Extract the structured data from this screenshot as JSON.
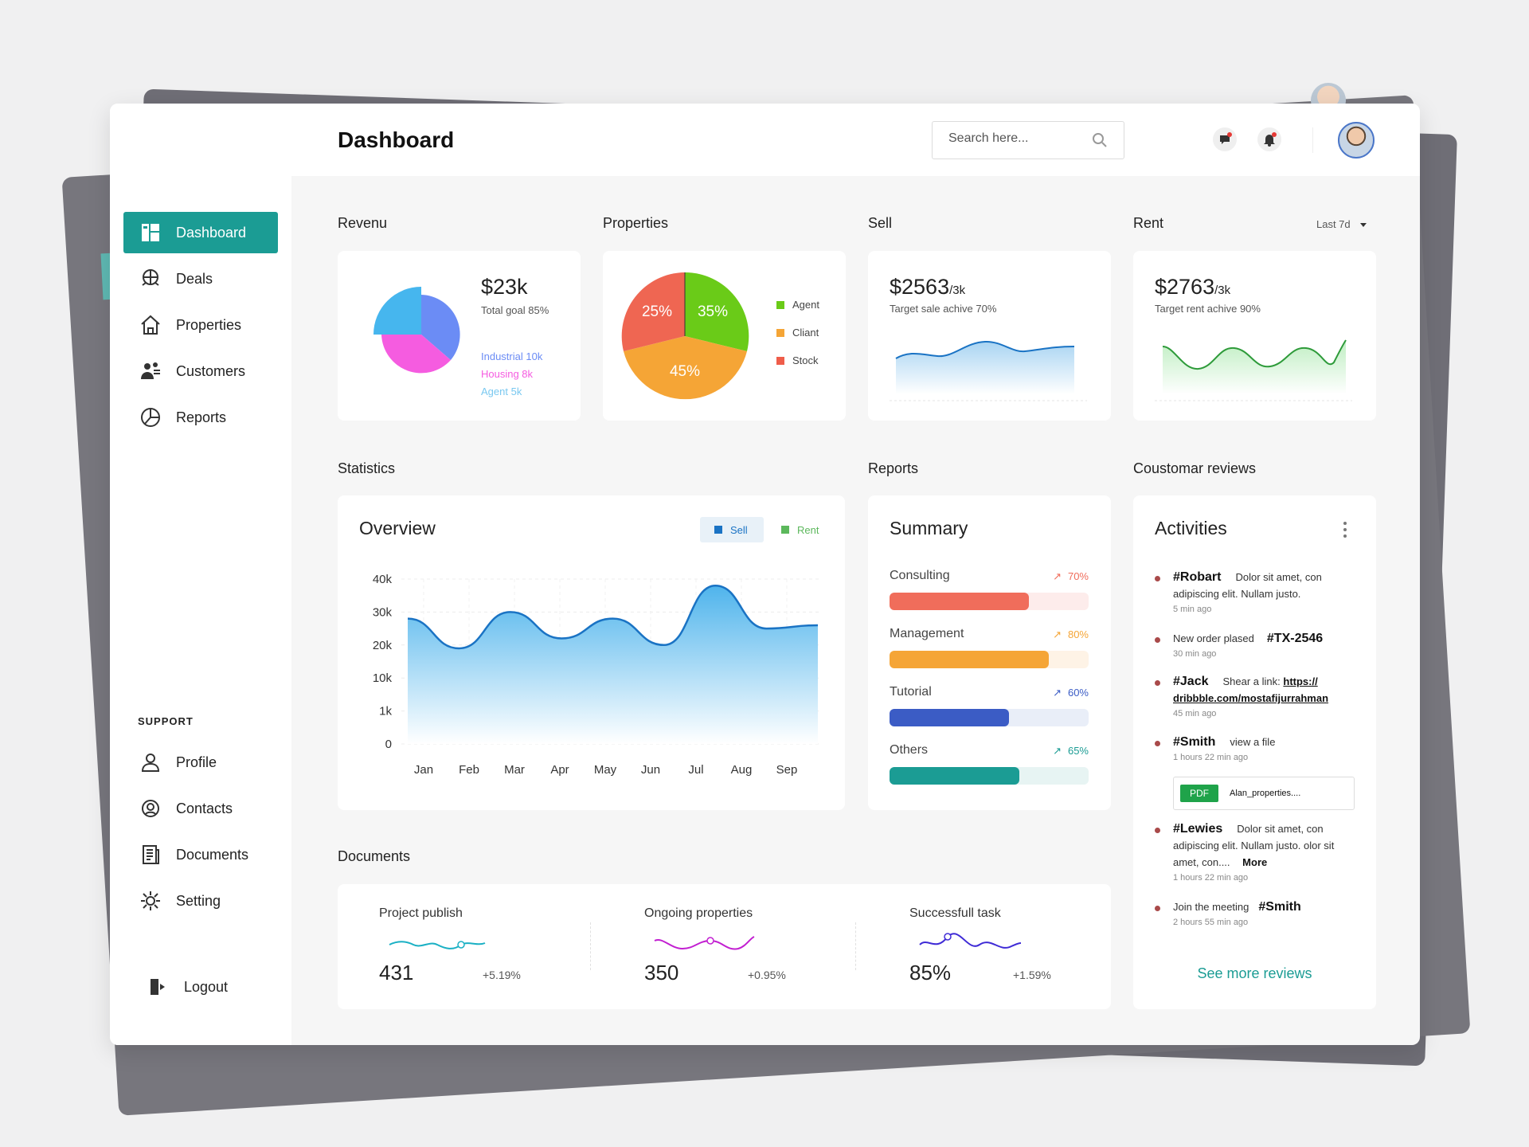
{
  "header": {
    "title": "Dashboard",
    "search_placeholder": "Search here..."
  },
  "sidebar": {
    "main_items": [
      {
        "label": "Dashboard",
        "icon": "dashboard-icon",
        "active": true
      },
      {
        "label": "Deals",
        "icon": "deals-icon"
      },
      {
        "label": "Properties",
        "icon": "properties-icon"
      },
      {
        "label": "Customers",
        "icon": "customers-icon"
      },
      {
        "label": "Reports",
        "icon": "reports-icon"
      }
    ],
    "support_label": "SUPPORT",
    "support_items": [
      {
        "label": "Profile",
        "icon": "profile-icon"
      },
      {
        "label": "Contacts",
        "icon": "contacts-icon"
      },
      {
        "label": "Documents",
        "icon": "documents-icon"
      },
      {
        "label": "Setting",
        "icon": "setting-icon"
      }
    ],
    "logout": "Logout"
  },
  "sections": {
    "revenu": "Revenu",
    "properties": "Properties",
    "sell": "Sell",
    "rent": "Rent",
    "statistics": "Statistics",
    "reports": "Reports",
    "reviews": "Coustomar reviews",
    "documents": "Documents",
    "period": "Last 7d"
  },
  "revenu_card": {
    "value": "$23k",
    "goal": "Total goal 85%",
    "legend": [
      {
        "label": "Industrial 10k",
        "color": "#6b8cf5"
      },
      {
        "label": "Housing 8k",
        "color": "#f55ce0"
      },
      {
        "label": "Agent 5k",
        "color": "#79c8f0"
      }
    ]
  },
  "properties_card": {
    "slices": [
      {
        "label": "35%",
        "value": 35,
        "color": "#6acb18"
      },
      {
        "label": "45%",
        "value": 45,
        "color": "#f5a536"
      },
      {
        "label": "25%",
        "value": 25,
        "color": "#ef6652"
      }
    ],
    "legend": [
      {
        "label": "Agent",
        "color": "#6acb18"
      },
      {
        "label": "Cliant",
        "color": "#f5a536"
      },
      {
        "label": "Stock",
        "color": "#ef5d4a"
      }
    ]
  },
  "sell_card": {
    "value": "$2563",
    "unit": "/3k",
    "target": "Target sale achive 70%"
  },
  "rent_card": {
    "value": "$2763",
    "unit": "/3k",
    "target": "Target rent achive 90%"
  },
  "overview": {
    "title": "Overview",
    "legend": [
      {
        "label": "Sell",
        "color": "#1a73c4"
      },
      {
        "label": "Rent",
        "color": "#5cb85c"
      }
    ]
  },
  "chart_data": {
    "type": "area",
    "categories": [
      "Jan",
      "Feb",
      "Mar",
      "Apr",
      "May",
      "Jun",
      "Jul",
      "Aug",
      "Sep"
    ],
    "y_ticks": [
      "0",
      "1k",
      "10k",
      "20k",
      "30k",
      "40k"
    ],
    "series": [
      {
        "name": "Sell",
        "values": [
          28000,
          19000,
          30000,
          22000,
          28000,
          20000,
          38000,
          25000,
          26000
        ]
      }
    ],
    "grid": true
  },
  "summary": {
    "title": "Summary",
    "rows": [
      {
        "label": "Consulting",
        "pct": "70%",
        "value": 70,
        "color": "#f06d5b",
        "track": "#fdeceb"
      },
      {
        "label": "Management",
        "pct": "80%",
        "value": 80,
        "color": "#f5a536",
        "track": "#fef3e6"
      },
      {
        "label": "Tutorial",
        "pct": "60%",
        "value": 60,
        "color": "#3b5cc5",
        "track": "#e9eef8"
      },
      {
        "label": "Others",
        "pct": "65%",
        "value": 65,
        "color": "#1b9c94",
        "track": "#e7f4f3"
      }
    ]
  },
  "activities": {
    "title": "Activities",
    "items": [
      {
        "tag": "#Robart",
        "text": "Dolor sit amet, con adipiscing elit. Nullam justo.",
        "time": "5 min ago"
      },
      {
        "pre": "New order plased",
        "tag": "#TX-2546",
        "time": "30 min ago"
      },
      {
        "tag": "#Jack",
        "text": "Shear a link:",
        "link": "https:// dribbble.com/mostafijurrahman",
        "time": "45 min ago"
      },
      {
        "tag": "#Smith",
        "text": "view a file",
        "time": "1 hours 22 min ago",
        "file_type": "PDF",
        "file_name": "Alan_properties...."
      },
      {
        "tag": "#Lewies",
        "text": "Dolor sit amet, con adipiscing elit. Nullam justo. olor sit amet, con....",
        "more": "More",
        "time": "1 hours 22 min ago"
      },
      {
        "pre": "Join the meeting",
        "tag": "#Smith",
        "time": "2 hours 55 min ago"
      }
    ],
    "see_more": "See more reviews"
  },
  "documents": [
    {
      "label": "Project publish",
      "value": "431",
      "change": "+5.19%",
      "color": "#1ab0c4"
    },
    {
      "label": "Ongoing properties",
      "value": "350",
      "change": "+0.95%",
      "color": "#c21fd1"
    },
    {
      "label": "Successfull task",
      "value": "85%",
      "change": "+1.59%",
      "color": "#3f2bd6"
    }
  ]
}
